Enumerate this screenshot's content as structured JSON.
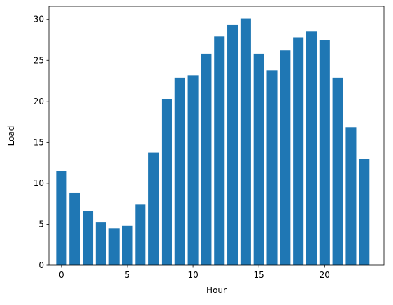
{
  "chart_data": {
    "type": "bar",
    "xlabel": "Hour",
    "ylabel": "Load",
    "x": [
      0,
      1,
      2,
      3,
      4,
      5,
      6,
      7,
      8,
      9,
      10,
      11,
      12,
      13,
      14,
      15,
      16,
      17,
      18,
      19,
      20,
      21,
      22,
      23
    ],
    "values": [
      11.5,
      8.8,
      6.6,
      5.2,
      4.5,
      4.8,
      7.4,
      13.7,
      20.3,
      22.9,
      23.2,
      25.8,
      27.9,
      29.3,
      30.1,
      25.8,
      23.8,
      26.2,
      27.8,
      28.5,
      27.5,
      22.9,
      16.8,
      12.9
    ],
    "color": "#1f77b4",
    "xlim": [
      -0.95,
      24.5
    ],
    "xticks": [
      0,
      5,
      10,
      15,
      20
    ],
    "ylim": [
      0,
      31.6
    ],
    "yticks": [
      0,
      5,
      10,
      15,
      20,
      25,
      30
    ]
  }
}
